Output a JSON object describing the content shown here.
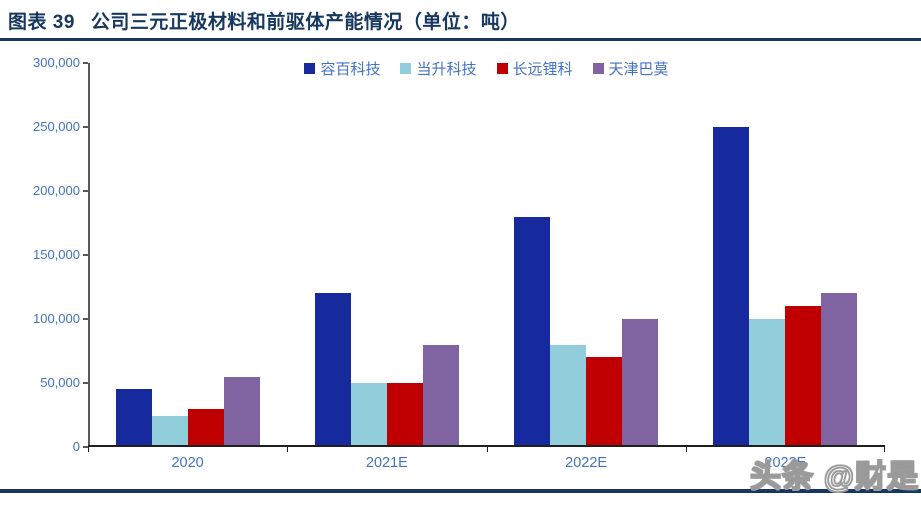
{
  "header": {
    "figure_label": "图表 39",
    "title": "公司三元正极材料和前驱体产能情况（单位：吨）"
  },
  "watermark": "头条 @财是",
  "colors": {
    "title_navy": "#17375E",
    "axis_label_blue": "#4472C4",
    "y_axis_line": "#595959",
    "x_axis_line": "#1F1F1F"
  },
  "chart_data": {
    "type": "bar",
    "title": "公司三元正极材料和前驱体产能情况",
    "unit": "吨",
    "categories": [
      "2020",
      "2021E",
      "2022E",
      "2023E"
    ],
    "series": [
      {
        "name": "容百科技",
        "color": "#162A9E",
        "values": [
          45000,
          120000,
          180000,
          250000
        ]
      },
      {
        "name": "当升科技",
        "color": "#92CDDC",
        "values": [
          24000,
          50000,
          80000,
          100000
        ]
      },
      {
        "name": "长远锂科",
        "color": "#C00000",
        "values": [
          30000,
          50000,
          70000,
          110000
        ]
      },
      {
        "name": "天津巴莫",
        "color": "#8064A2",
        "values": [
          55000,
          80000,
          100000,
          120000
        ]
      }
    ],
    "ylim": [
      0,
      300000
    ],
    "yticks": [
      0,
      50000,
      100000,
      150000,
      200000,
      250000,
      300000
    ],
    "grid": false,
    "legend_position": "top"
  }
}
